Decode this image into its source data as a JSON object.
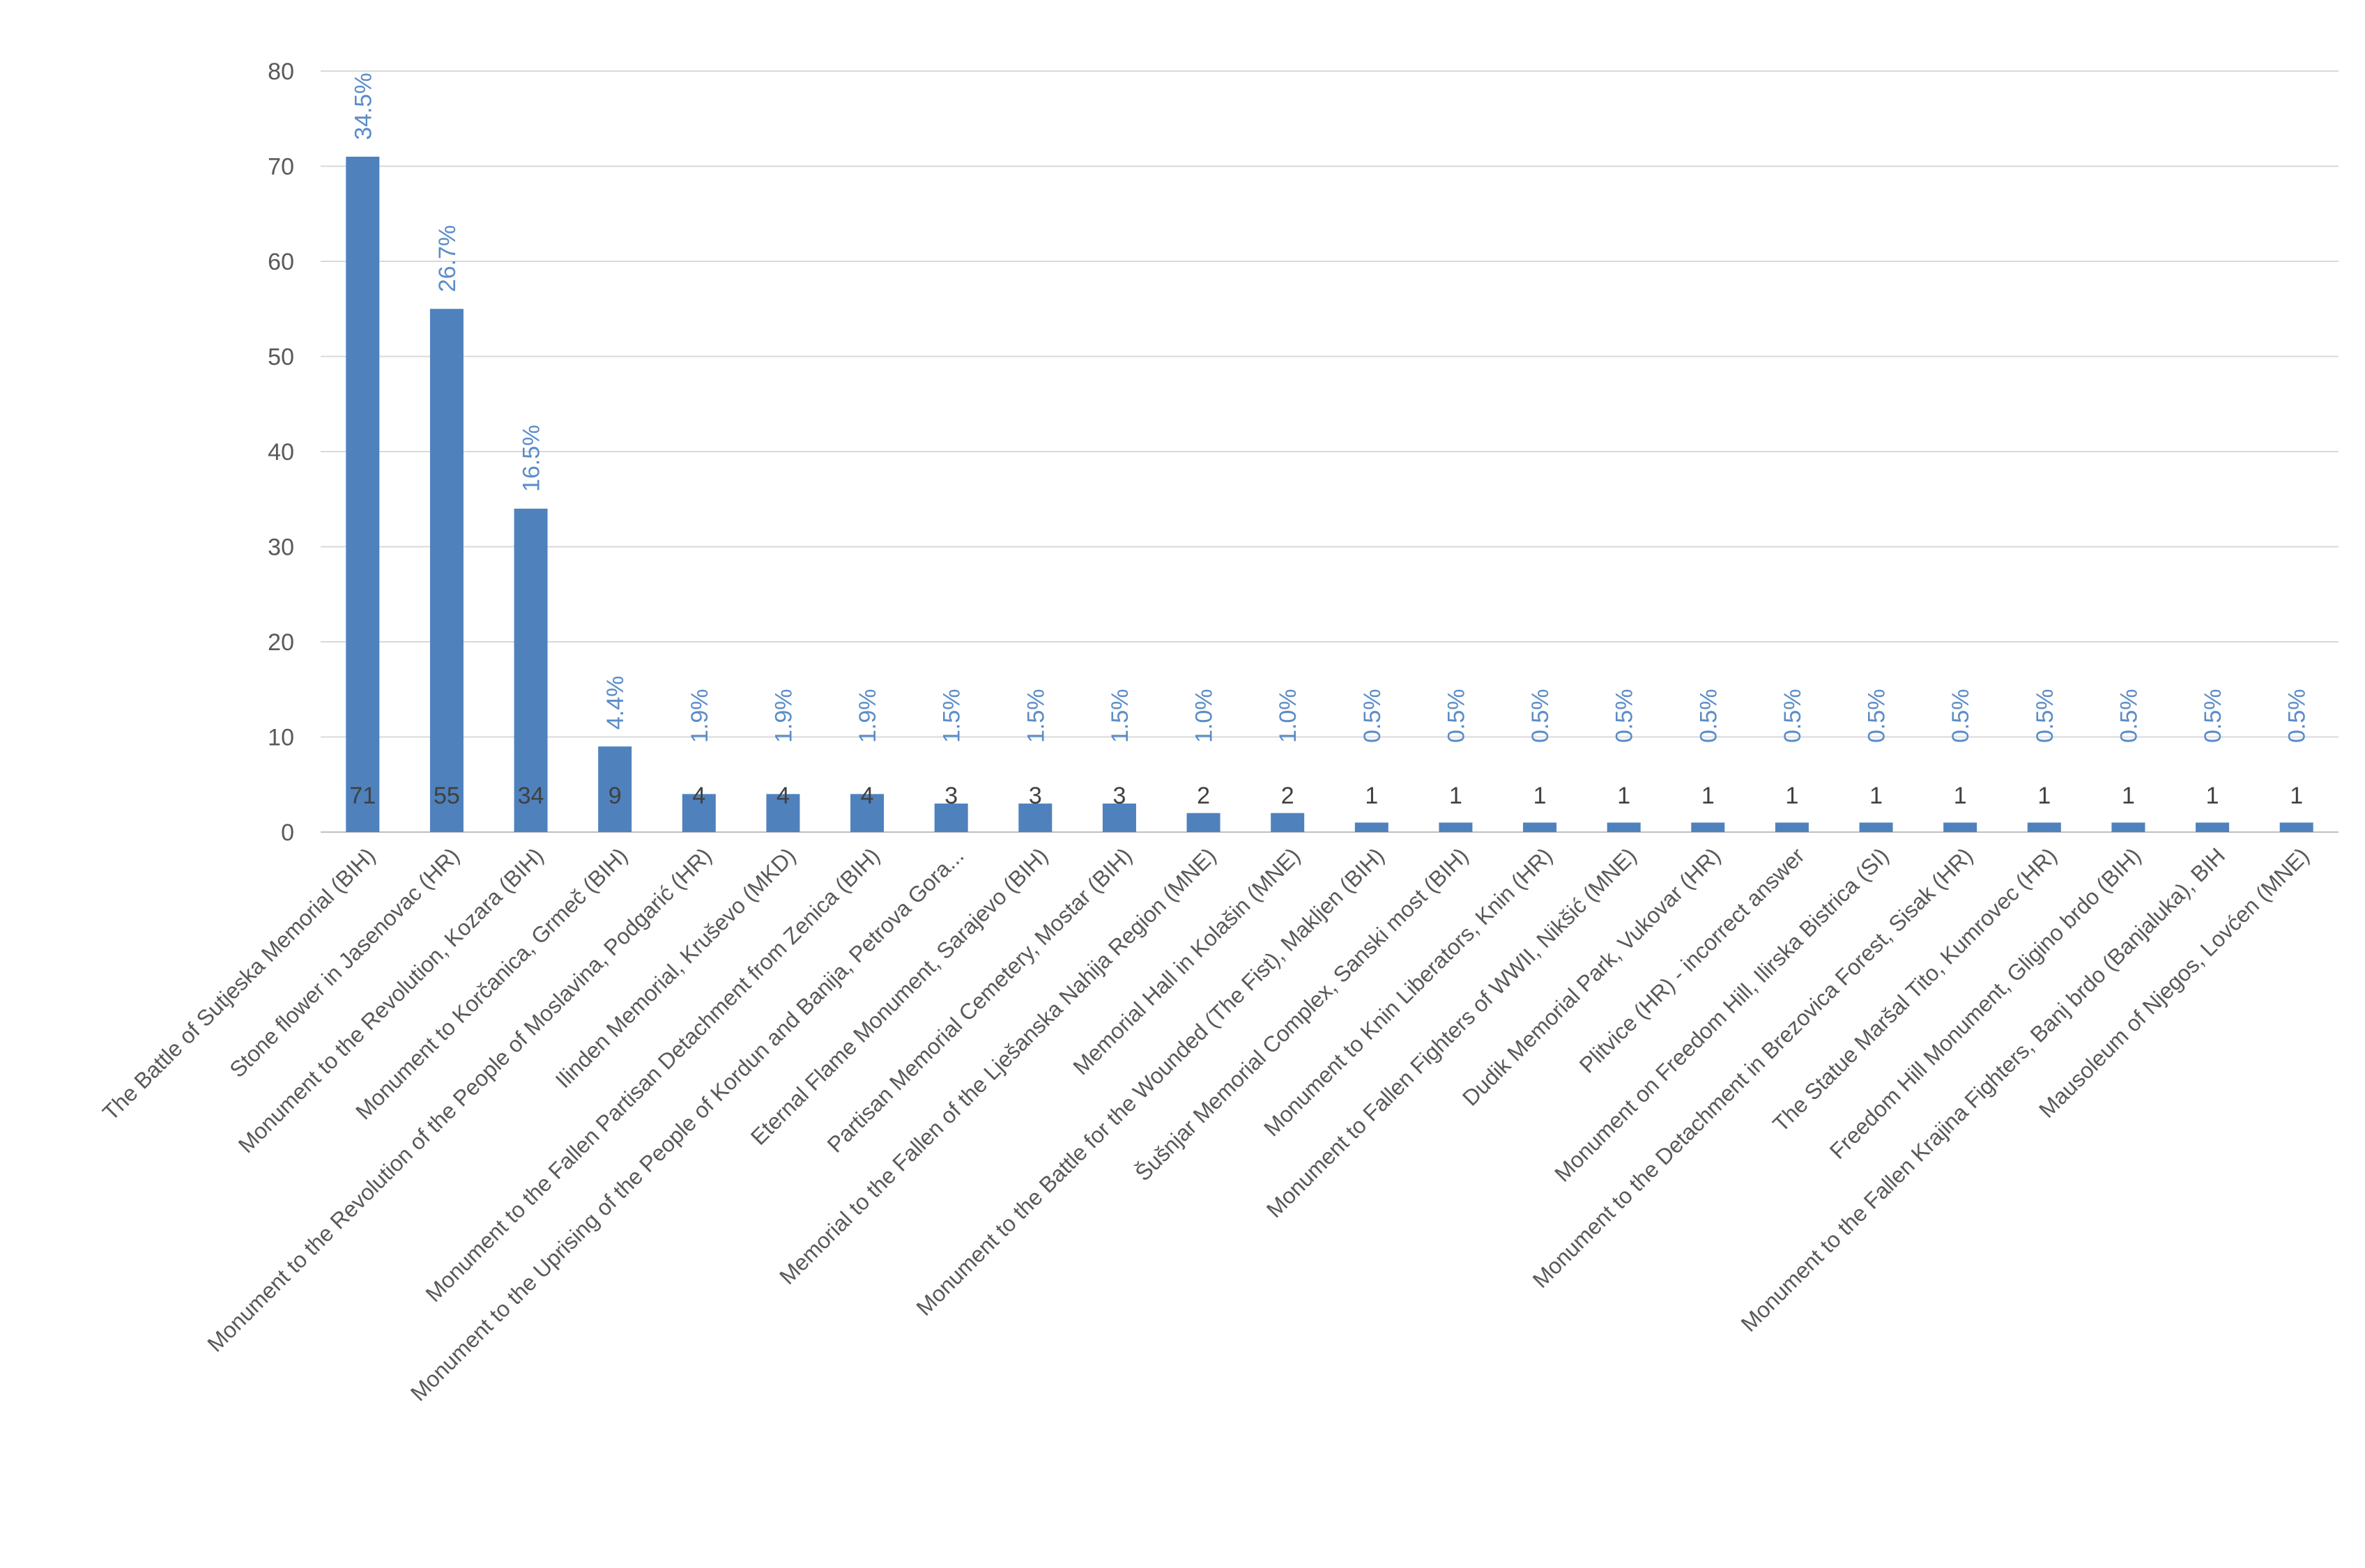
{
  "chart_data": {
    "type": "bar",
    "title": "",
    "xlabel": "",
    "ylabel": "",
    "ylim": [
      0,
      80
    ],
    "yticks": [
      0,
      10,
      20,
      30,
      40,
      50,
      60,
      70,
      80
    ],
    "grid": true,
    "bar_color": "#4f81bd",
    "count_label_color": "#404040",
    "pct_label_color": "#5b8cc8",
    "categories": [
      "The Battle of Sutjeska Memorial (BIH)",
      "Stone flower in Jasenovac (HR)",
      "Monument to the Revolution, Kozara (BIH)",
      "Monument to Korčanica, Grmeč (BIH)",
      "Monument to the Revolution of the People of Moslavina, Podgarić (HR)",
      "Ilinden Memorial, Kruševo (MKD)",
      "Monument to the Fallen Partisan Detachment from Zenica (BIH)",
      "Monument to the Uprising of the People of Kordun and Banija, Petrova Gora...",
      "Eternal Flame Monument, Sarajevo (BIH)",
      "Partisan Memorial Cemetery, Mostar (BIH)",
      "Memorial to the Fallen of the Lješanska Nahija Region (MNE)",
      "Memorial Hall in Kolašin (MNE)",
      "Monument to the Battle for the Wounded (The Fist), Makljen (BIH)",
      "Šušnjar Memorial Complex, Sanski most (BIH)",
      "Monument to Knin Liberators, Knin (HR)",
      "Monument to Fallen Fighters of WWII, Nikšić (MNE)",
      "Dudik Memorial Park, Vukovar (HR)",
      "Plitvice (HR) - incorrect answer",
      "Monument on Freedom Hill, Ilirska Bistrica (SI)",
      "Monument to the Detachment in Brezovica Forest, Sisak (HR)",
      "The Statue Maršal Tito, Kumrovec (HR)",
      "Freedom Hill Monument, Gligino brdo (BIH)",
      "Monument to the Fallen Krajina Fighters, Banj brdo (Banjaluka), BIH",
      "Mausoleum of Njegos, Lovćen (MNE)"
    ],
    "values": [
      71,
      55,
      34,
      9,
      4,
      4,
      4,
      3,
      3,
      3,
      2,
      2,
      1,
      1,
      1,
      1,
      1,
      1,
      1,
      1,
      1,
      1,
      1,
      1
    ],
    "percent_labels": [
      "34.5%",
      "26.7%",
      "16.5%",
      "4.4%",
      "1.9%",
      "1.9%",
      "1.9%",
      "1.5%",
      "1.5%",
      "1.5%",
      "1.0%",
      "1.0%",
      "0.5%",
      "0.5%",
      "0.5%",
      "0.5%",
      "0.5%",
      "0.5%",
      "0.5%",
      "0.5%",
      "0.5%",
      "0.5%",
      "0.5%",
      "0.5%"
    ]
  }
}
